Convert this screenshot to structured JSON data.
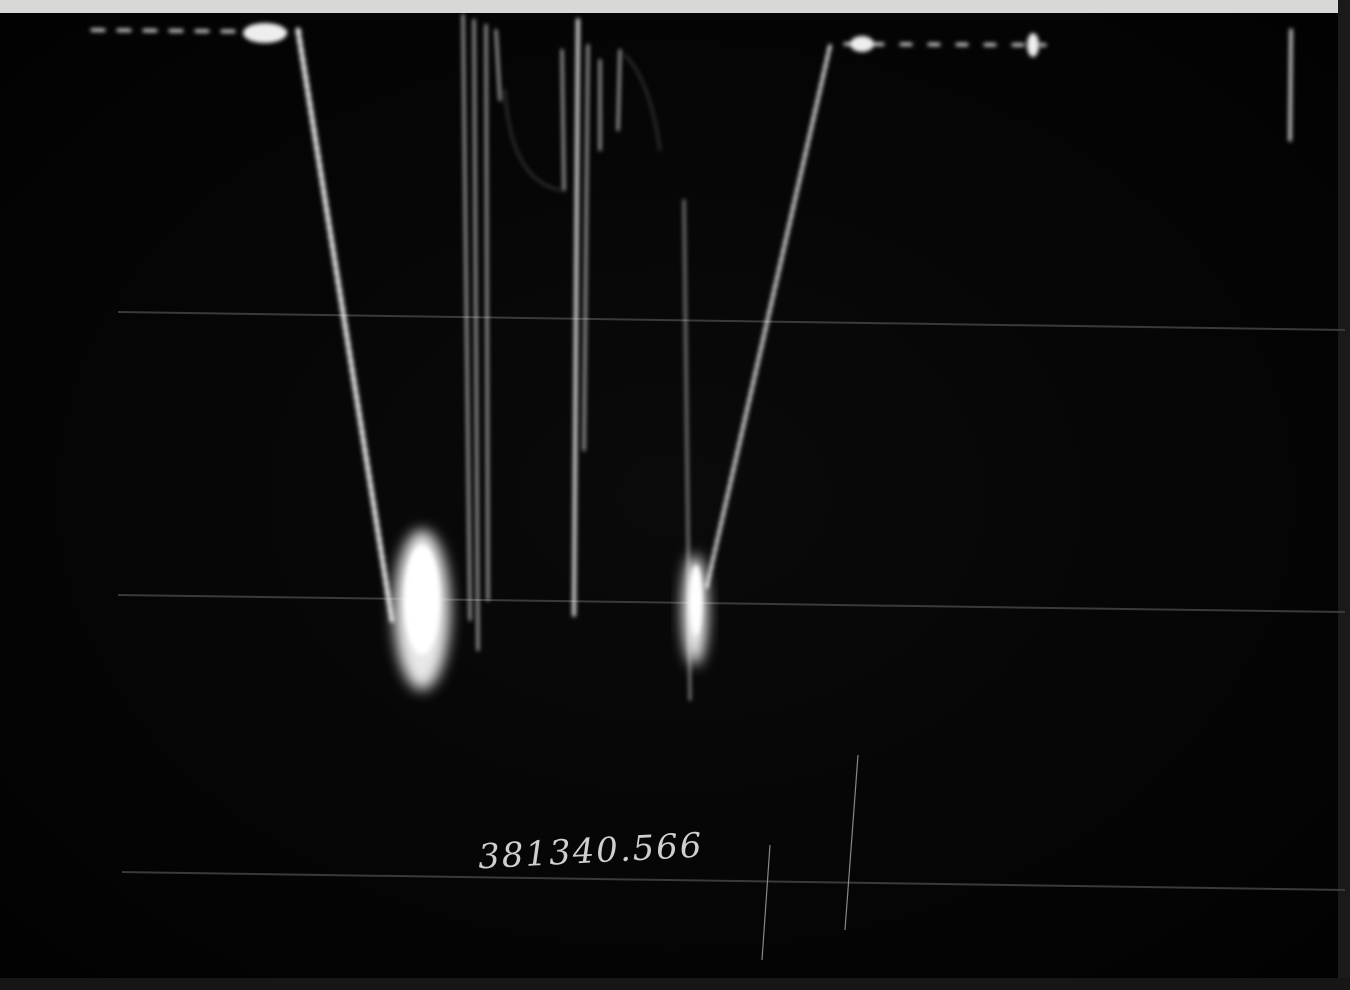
{
  "annotation": "381340.566"
}
